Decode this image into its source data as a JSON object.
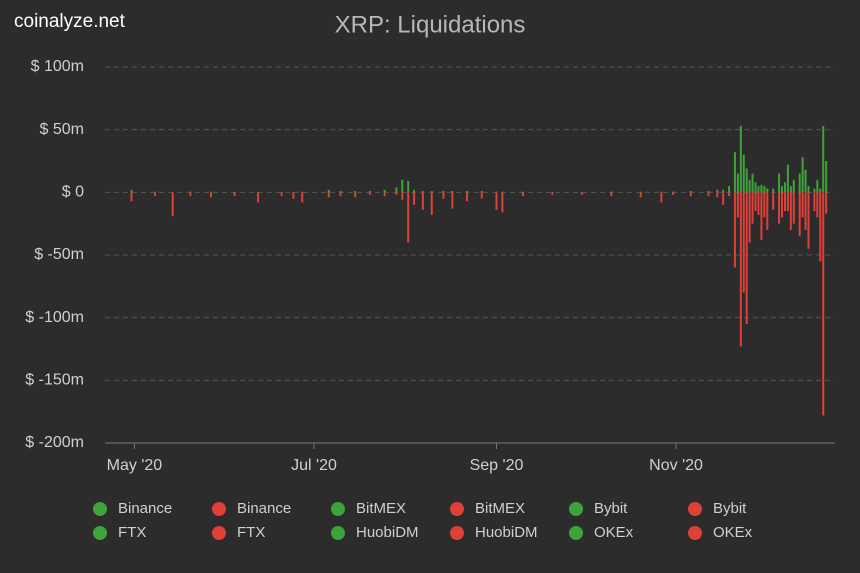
{
  "watermark": "coinalyze.net",
  "chart_data": {
    "type": "bar",
    "title": "XRP: Liquidations",
    "x": [
      "2020-04-30",
      "2020-05-08",
      "2020-05-14",
      "2020-05-20",
      "2020-05-27",
      "2020-06-04",
      "2020-06-12",
      "2020-06-20",
      "2020-06-24",
      "2020-06-27",
      "2020-07-06",
      "2020-07-10",
      "2020-07-15",
      "2020-07-20",
      "2020-07-25",
      "2020-07-29",
      "2020-07-31",
      "2020-08-02",
      "2020-08-04",
      "2020-08-07",
      "2020-08-10",
      "2020-08-14",
      "2020-08-17",
      "2020-08-22",
      "2020-08-27",
      "2020-09-01",
      "2020-09-03",
      "2020-09-10",
      "2020-09-20",
      "2020-09-30",
      "2020-10-10",
      "2020-10-20",
      "2020-10-27",
      "2020-10-31",
      "2020-11-06",
      "2020-11-12",
      "2020-11-15",
      "2020-11-17",
      "2020-11-19",
      "2020-11-21",
      "2020-11-22",
      "2020-11-23",
      "2020-11-24",
      "2020-11-25",
      "2020-11-26",
      "2020-11-27",
      "2020-11-28",
      "2020-11-29",
      "2020-11-30",
      "2020-12-01",
      "2020-12-02",
      "2020-12-04",
      "2020-12-06",
      "2020-12-07",
      "2020-12-08",
      "2020-12-09",
      "2020-12-10",
      "2020-12-11",
      "2020-12-13",
      "2020-12-14",
      "2020-12-15",
      "2020-12-16",
      "2020-12-18",
      "2020-12-19",
      "2020-12-20",
      "2020-12-21",
      "2020-12-22"
    ],
    "series": [
      {
        "name": "Binance",
        "color": "#3ea33a",
        "values": [
          2,
          0.5,
          0,
          0.5,
          0.5,
          0.3,
          0.3,
          0.3,
          0.3,
          0.5,
          2,
          1,
          1,
          1,
          2,
          4,
          10,
          9,
          2,
          1,
          1,
          1,
          1,
          1,
          1,
          0.5,
          0.5,
          0.5,
          0.3,
          0.3,
          0.5,
          0.5,
          0.5,
          0.5,
          1,
          1,
          2,
          2,
          5,
          32,
          15,
          53,
          30,
          19,
          10,
          15,
          8,
          5,
          6,
          5,
          3,
          3,
          15,
          5,
          8,
          22,
          5,
          10,
          15,
          28,
          18,
          5,
          3,
          10,
          3,
          53,
          25
        ]
      },
      {
        "name": "Binance",
        "color": "#e0403a",
        "values": [
          -7,
          -3,
          -19,
          -3,
          -4,
          -3,
          -8,
          -3,
          -5,
          -8,
          -4,
          -3,
          -4,
          -2,
          -3,
          -2,
          -6,
          -40,
          -10,
          -14,
          -18,
          -5,
          -13,
          -7,
          -5,
          -14,
          -16,
          -3,
          -2,
          -2,
          -3,
          -4,
          -8,
          -2,
          -3,
          -3,
          -4,
          -10,
          -3,
          -60,
          -20,
          -123,
          -80,
          -105,
          -40,
          -25,
          -15,
          -18,
          -38,
          -20,
          -30,
          -14,
          -25,
          -20,
          -15,
          -15,
          -30,
          -25,
          -35,
          -20,
          -30,
          -45,
          -15,
          -20,
          -55,
          -178,
          -17
        ]
      },
      {
        "name": "BitMEX",
        "color": "#3ea33a",
        "values": [
          0,
          0,
          0,
          0,
          0,
          0,
          0,
          0,
          0,
          0,
          0,
          0,
          0,
          0,
          0,
          0,
          0,
          0,
          0,
          0,
          0,
          0,
          0,
          0,
          0,
          0,
          0,
          0,
          0,
          0,
          0,
          0,
          0,
          0,
          0,
          0,
          0,
          0,
          0,
          0,
          0,
          0,
          0,
          0,
          0,
          0,
          0,
          0,
          0,
          0,
          0,
          0,
          0,
          0,
          0,
          0,
          0,
          0,
          0,
          0,
          0,
          0,
          0,
          0,
          0,
          0,
          0
        ]
      },
      {
        "name": "BitMEX",
        "color": "#e0403a",
        "values": [
          0,
          0,
          0,
          0,
          0,
          0,
          0,
          0,
          0,
          0,
          0,
          0,
          0,
          0,
          0,
          0,
          0,
          0,
          0,
          0,
          0,
          0,
          0,
          0,
          0,
          0,
          0,
          0,
          0,
          0,
          0,
          0,
          0,
          0,
          0,
          0,
          0,
          0,
          0,
          0,
          0,
          0,
          0,
          0,
          0,
          0,
          0,
          0,
          0,
          0,
          0,
          0,
          0,
          0,
          0,
          0,
          0,
          0,
          0,
          0,
          0,
          0,
          0,
          0,
          0,
          0,
          0
        ]
      },
      {
        "name": "Bybit",
        "color": "#3ea33a",
        "values": [
          0,
          0,
          0,
          0,
          0,
          0,
          0,
          0,
          0,
          0,
          0,
          0,
          0,
          0,
          0,
          0,
          0,
          0,
          0,
          0,
          0,
          0,
          0,
          0,
          0,
          0,
          0,
          0,
          0,
          0,
          0,
          0,
          0,
          0,
          0,
          0,
          0,
          0,
          0,
          0,
          0,
          0,
          0,
          0,
          0,
          0,
          0,
          0,
          0,
          0,
          0,
          0,
          0,
          0,
          0,
          0,
          0,
          0,
          0,
          0,
          0,
          0,
          0,
          0,
          0,
          0,
          0
        ]
      },
      {
        "name": "Bybit",
        "color": "#e0403a",
        "values": [
          0,
          0,
          0,
          0,
          0,
          0,
          0,
          0,
          0,
          0,
          0,
          0,
          0,
          0,
          0,
          0,
          0,
          0,
          0,
          0,
          0,
          0,
          0,
          0,
          0,
          0,
          0,
          0,
          0,
          0,
          0,
          0,
          0,
          0,
          0,
          0,
          0,
          0,
          0,
          0,
          0,
          0,
          0,
          0,
          0,
          0,
          0,
          0,
          0,
          0,
          0,
          0,
          0,
          0,
          0,
          0,
          0,
          0,
          0,
          0,
          0,
          0,
          0,
          0,
          0,
          0,
          0
        ]
      },
      {
        "name": "FTX",
        "color": "#3ea33a",
        "values": [
          0,
          0,
          0,
          0,
          0,
          0,
          0,
          0,
          0,
          0,
          0,
          0,
          0,
          0,
          0,
          0,
          0,
          0,
          0,
          0,
          0,
          0,
          0,
          0,
          0,
          0,
          0,
          0,
          0,
          0,
          0,
          0,
          0,
          0,
          0,
          0,
          0,
          0,
          0,
          0,
          0,
          0,
          0,
          0,
          0,
          0,
          0,
          0,
          0,
          0,
          0,
          0,
          0,
          0,
          0,
          0,
          0,
          0,
          0,
          0,
          0,
          0,
          0,
          0,
          0,
          0,
          0
        ]
      },
      {
        "name": "FTX",
        "color": "#e0403a",
        "values": [
          0,
          0,
          0,
          0,
          0,
          0,
          0,
          0,
          0,
          0,
          0,
          0,
          0,
          0,
          0,
          0,
          0,
          0,
          0,
          0,
          0,
          0,
          0,
          0,
          0,
          0,
          0,
          0,
          0,
          0,
          0,
          0,
          0,
          0,
          0,
          0,
          0,
          0,
          0,
          0,
          0,
          0,
          0,
          0,
          0,
          0,
          0,
          0,
          0,
          0,
          0,
          0,
          0,
          0,
          0,
          0,
          0,
          0,
          0,
          0,
          0,
          0,
          0,
          0,
          0,
          0,
          0
        ]
      },
      {
        "name": "HuobiDM",
        "color": "#3ea33a",
        "values": [
          0,
          0,
          0,
          0,
          0,
          0,
          0,
          0,
          0,
          0,
          0,
          0,
          0,
          0,
          0,
          0,
          0,
          0,
          0,
          0,
          0,
          0,
          0,
          0,
          0,
          0,
          0,
          0,
          0,
          0,
          0,
          0,
          0,
          0,
          0,
          0,
          0,
          0,
          0,
          0,
          0,
          0,
          0,
          0,
          0,
          0,
          0,
          0,
          0,
          0,
          0,
          0,
          0,
          0,
          0,
          0,
          0,
          0,
          0,
          0,
          0,
          0,
          0,
          0,
          0,
          0,
          0
        ]
      },
      {
        "name": "HuobiDM",
        "color": "#e0403a",
        "values": [
          0,
          0,
          0,
          0,
          0,
          0,
          0,
          0,
          0,
          0,
          0,
          0,
          0,
          0,
          0,
          0,
          0,
          0,
          0,
          0,
          0,
          0,
          0,
          0,
          0,
          0,
          0,
          0,
          0,
          0,
          0,
          0,
          0,
          0,
          0,
          0,
          0,
          0,
          0,
          0,
          0,
          0,
          0,
          0,
          0,
          0,
          0,
          0,
          0,
          0,
          0,
          0,
          0,
          0,
          0,
          0,
          0,
          0,
          0,
          0,
          0,
          0,
          0,
          0,
          0,
          0,
          0
        ]
      },
      {
        "name": "OKEx",
        "color": "#3ea33a",
        "values": [
          0,
          0,
          0,
          0,
          0,
          0,
          0,
          0,
          0,
          0,
          0,
          0,
          0,
          0,
          0,
          0,
          0,
          0,
          0,
          0,
          0,
          0,
          0,
          0,
          0,
          0,
          0,
          0,
          0,
          0,
          0,
          0,
          0,
          0,
          0,
          0,
          0,
          0,
          0,
          0,
          0,
          0,
          0,
          0,
          0,
          0,
          0,
          0,
          0,
          0,
          0,
          0,
          0,
          0,
          0,
          0,
          0,
          0,
          0,
          0,
          0,
          0,
          0,
          0,
          0,
          0,
          0
        ]
      },
      {
        "name": "OKEx",
        "color": "#e0403a",
        "values": [
          0,
          0,
          0,
          0,
          0,
          0,
          0,
          0,
          0,
          0,
          0,
          0,
          0,
          0,
          0,
          0,
          0,
          0,
          0,
          0,
          0,
          0,
          0,
          0,
          0,
          0,
          0,
          0,
          0,
          0,
          0,
          0,
          0,
          0,
          0,
          0,
          0,
          0,
          0,
          0,
          0,
          0,
          0,
          0,
          0,
          0,
          0,
          0,
          0,
          0,
          0,
          0,
          0,
          0,
          0,
          0,
          0,
          0,
          0,
          0,
          0,
          0,
          0,
          0,
          0,
          0,
          0
        ]
      }
    ],
    "xlim": [
      "2020-04-21",
      "2020-12-25"
    ],
    "xticks": [
      {
        "value": "2020-05-01",
        "label": "May '20"
      },
      {
        "value": "2020-07-01",
        "label": "Jul '20"
      },
      {
        "value": "2020-09-01",
        "label": "Sep '20"
      },
      {
        "value": "2020-11-01",
        "label": "Nov '20"
      }
    ],
    "ylim": [
      -200,
      100
    ],
    "yticks": [
      {
        "value": -200,
        "label": "$ -200m"
      },
      {
        "value": -150,
        "label": "$ -150m"
      },
      {
        "value": -100,
        "label": "$ -100m"
      },
      {
        "value": -50,
        "label": "$ -50m"
      },
      {
        "value": 0,
        "label": "$ 0"
      },
      {
        "value": 50,
        "label": "$ 50m"
      },
      {
        "value": 100,
        "label": "$ 100m"
      }
    ],
    "grid": true,
    "legend": "bottom"
  }
}
